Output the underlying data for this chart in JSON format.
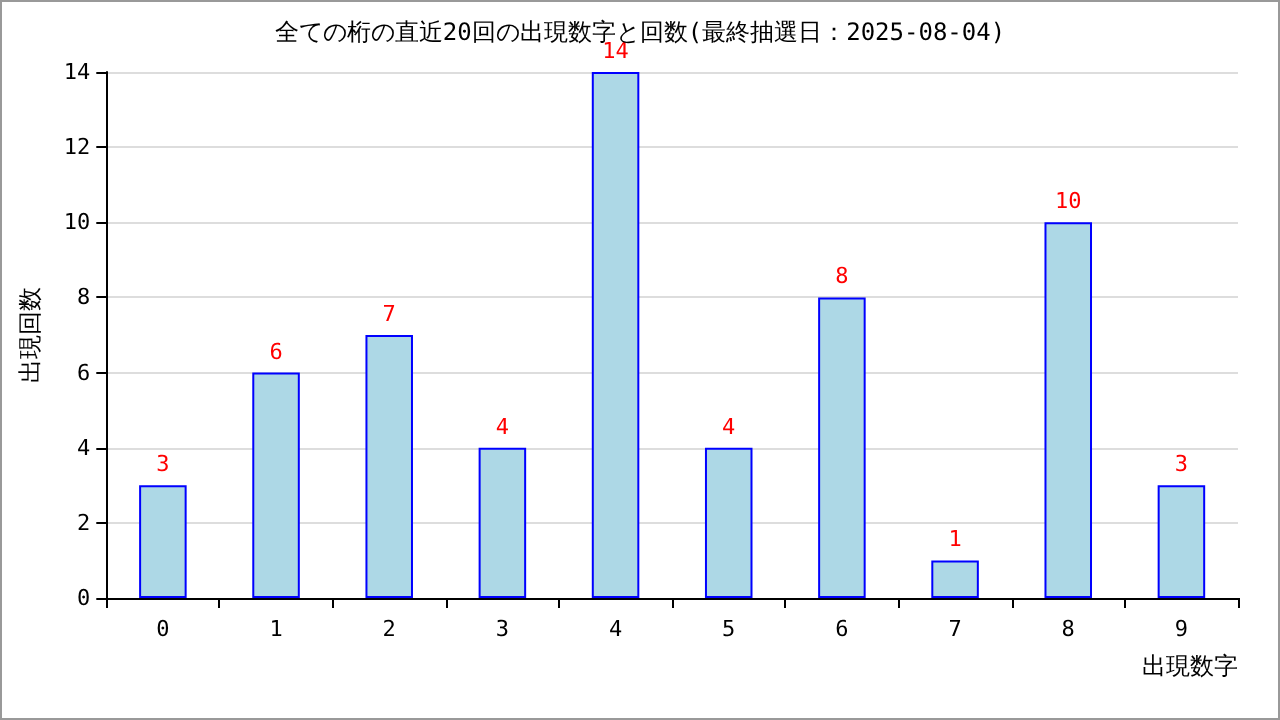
{
  "chart_data": {
    "type": "bar",
    "title": "全ての桁の直近20回の出現数字と回数(最終抽選日：2025-08-04)",
    "xlabel": "出現数字",
    "ylabel": "出現回数",
    "categories": [
      "0",
      "1",
      "2",
      "3",
      "4",
      "5",
      "6",
      "7",
      "8",
      "9"
    ],
    "values": [
      3,
      6,
      7,
      4,
      14,
      4,
      8,
      1,
      10,
      3
    ],
    "color": "#add8e6",
    "ylim": [
      0,
      14
    ],
    "yticks": [
      0,
      2,
      4,
      6,
      8,
      10,
      12,
      14
    ],
    "grid": "y",
    "data_labels": true
  }
}
